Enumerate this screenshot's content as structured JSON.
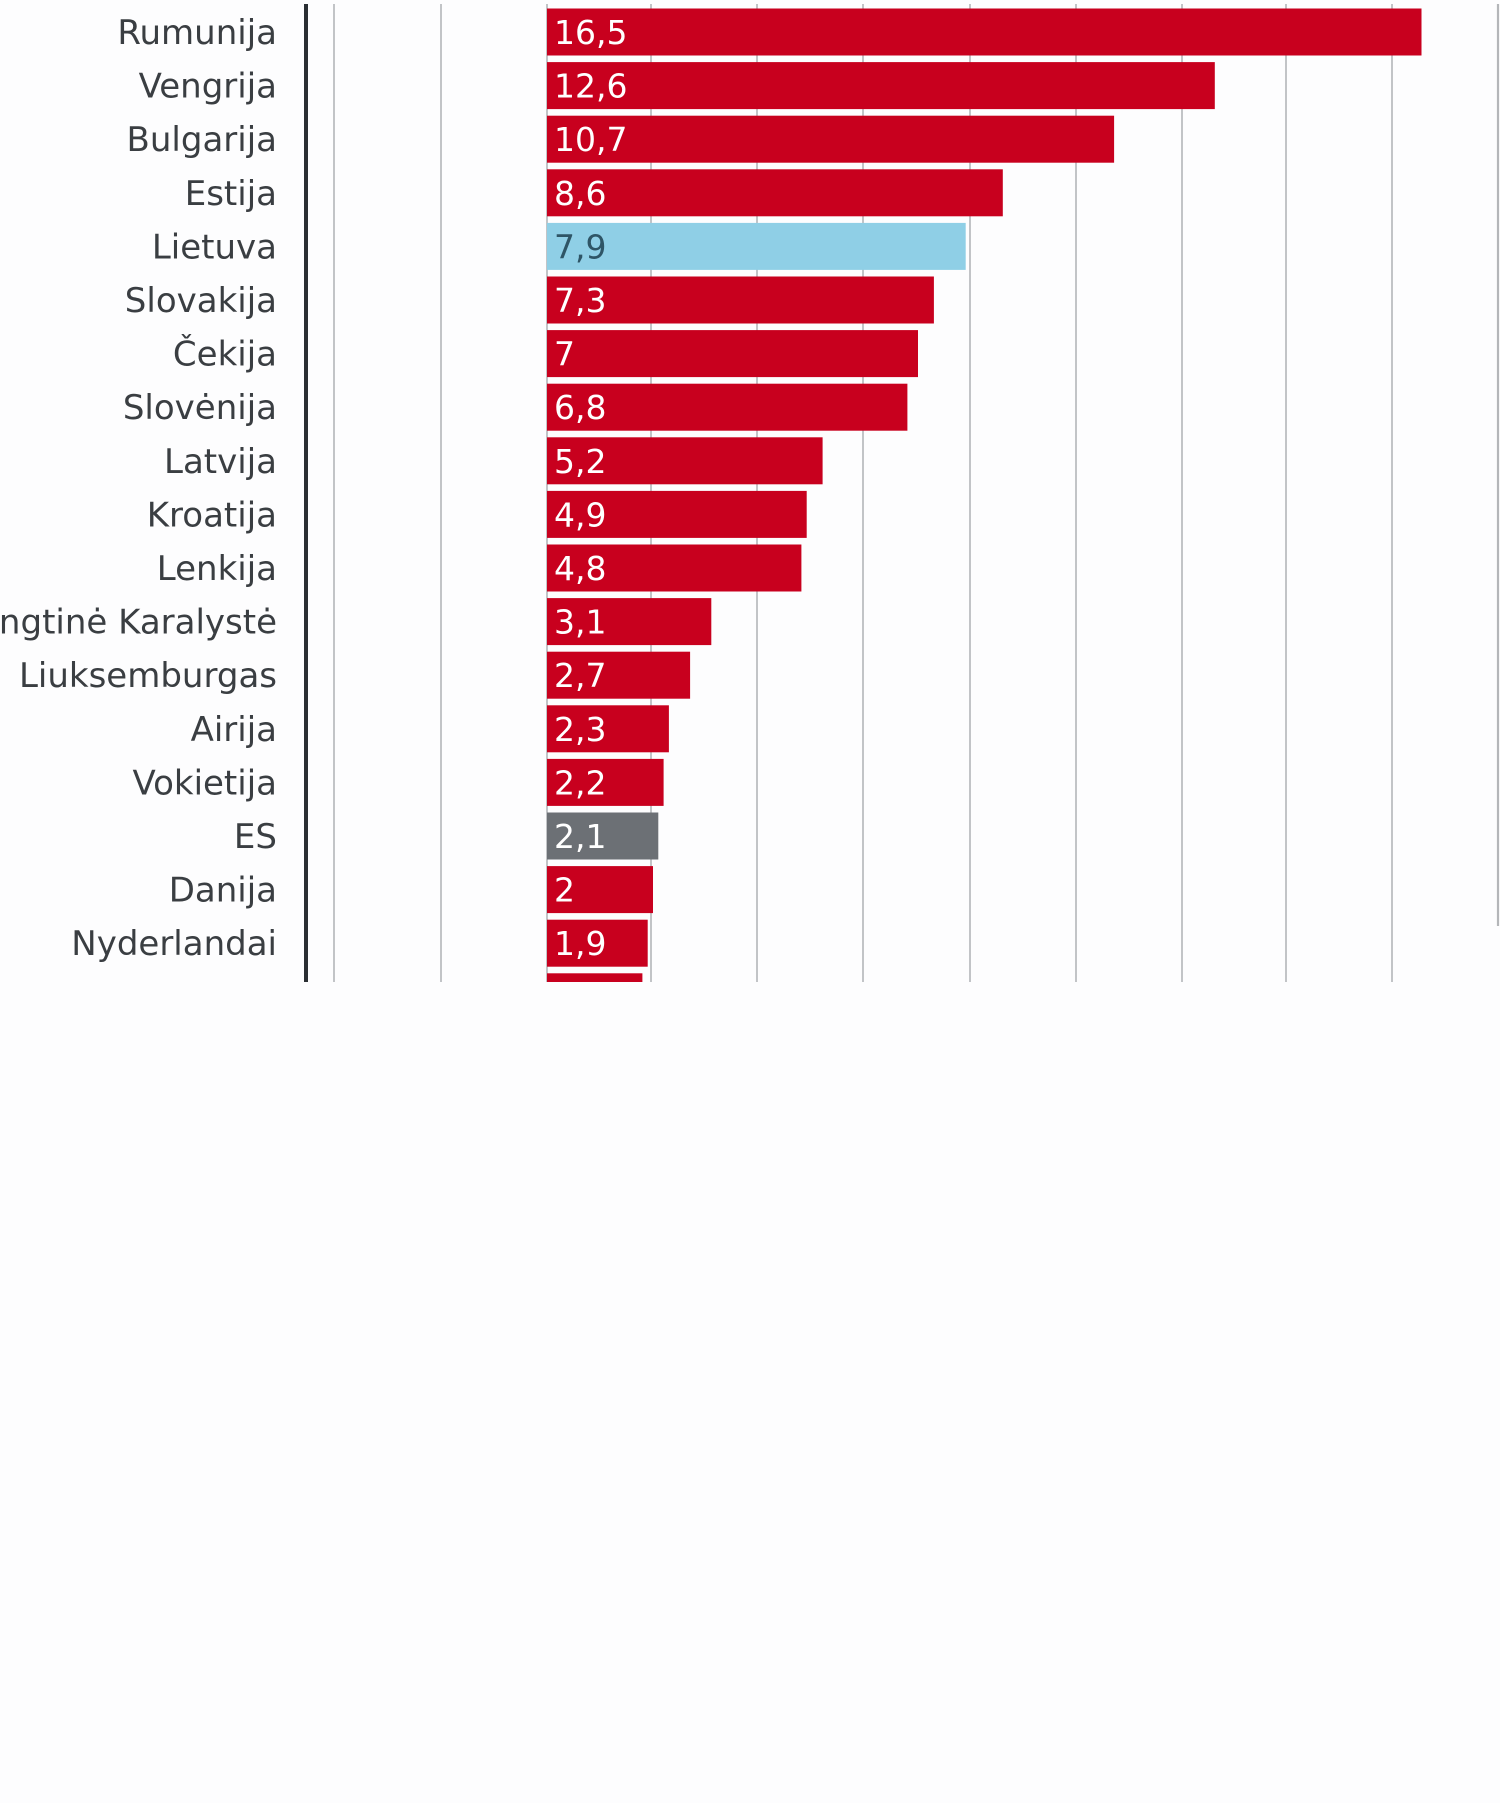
{
  "chart_data": {
    "type": "bar",
    "orientation": "horizontal",
    "title": "",
    "xlabel": "",
    "ylabel": "",
    "grid": true,
    "categories": [
      "Rumunija",
      "Vengrija",
      "Bulgarija",
      "Estija",
      "Lietuva",
      "Slovakija",
      "Čekija",
      "Slovėnija",
      "Latvija",
      "Kroatija",
      "Lenkija",
      "Jungtinė Karalystė",
      "Liuksemburgas",
      "Airija",
      "Vokietija",
      "ES",
      "Danija",
      "Nyderlandai"
    ],
    "values": [
      16.5,
      12.6,
      10.7,
      8.6,
      7.9,
      7.3,
      7,
      6.8,
      5.2,
      4.9,
      4.8,
      3.1,
      2.7,
      2.3,
      2.2,
      2.1,
      2,
      1.9
    ],
    "value_labels": [
      "16,5",
      "12,6",
      "10,7",
      "8,6",
      "7,9",
      "7,3",
      "7",
      "6,8",
      "5,2",
      "4,9",
      "4,8",
      "3,1",
      "2,7",
      "2,3",
      "2,2",
      "2,1",
      "2",
      "1,9"
    ],
    "colors": {
      "default": "#c8001e",
      "highlight_lietuva": "#8fcfe6",
      "highlight_es": "#6c7075",
      "value_text_default": "#ffffff",
      "value_text_lietuva": "#2e5566",
      "gridline": "#b4b6b9",
      "axis_line": "#2a2e33"
    },
    "bar_colors": [
      "#c8001e",
      "#c8001e",
      "#c8001e",
      "#c8001e",
      "#8fcfe6",
      "#c8001e",
      "#c8001e",
      "#c8001e",
      "#c8001e",
      "#c8001e",
      "#c8001e",
      "#c8001e",
      "#c8001e",
      "#c8001e",
      "#c8001e",
      "#6c7075",
      "#c8001e",
      "#c8001e"
    ],
    "value_text_colors": [
      "#ffffff",
      "#ffffff",
      "#ffffff",
      "#ffffff",
      "#2e5566",
      "#ffffff",
      "#ffffff",
      "#ffffff",
      "#ffffff",
      "#ffffff",
      "#ffffff",
      "#ffffff",
      "#ffffff",
      "#ffffff",
      "#ffffff",
      "#ffffff",
      "#ffffff",
      "#ffffff"
    ],
    "partial_next_bar_value": 1.8
  }
}
